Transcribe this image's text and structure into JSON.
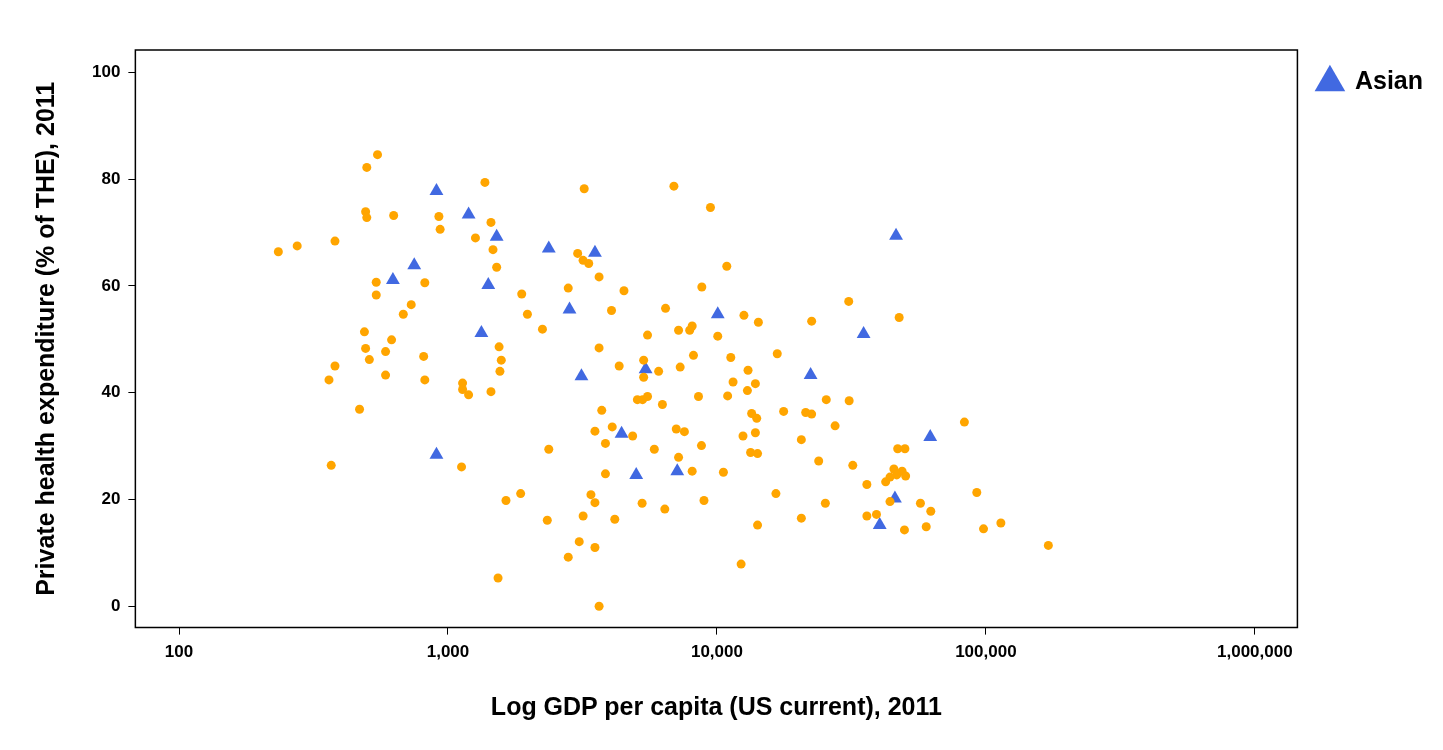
{
  "chart_data": {
    "type": "scatter",
    "xlabel": "Log GDP per capita (US current), 2011",
    "ylabel": "Private health expenditure (% of THE), 2011",
    "log": "x",
    "xlim": [
      68.8,
      1440000
    ],
    "ylim": [
      -4,
      104.2
    ],
    "xticks": [
      100,
      {
        "value": 1000,
        "label": "1,000"
      },
      {
        "value": 10000,
        "label": "10,000"
      },
      {
        "value": 100000,
        "label": "100,000"
      },
      {
        "value": 1000000,
        "label": "1,000,000"
      }
    ],
    "yticks": [
      0,
      20,
      40,
      60,
      80,
      100
    ],
    "grid": false,
    "legend": "top right",
    "series": [
      {
        "color": "#ffa500",
        "marker": "circle",
        "x": [
          547,
          499,
          1372,
          494,
          499,
          628,
          925,
          935,
          1445,
          1265,
          1470,
          1517,
          234,
          275,
          380,
          541,
          820,
          541,
          1880,
          730,
          682,
          1974,
          489,
          494,
          586,
          617,
          1549,
          812,
          510,
          1578,
          380,
          361,
          586,
          820,
          1560,
          1133,
          1133,
          1193,
          1445,
          469,
          368,
          1123,
          1863,
          1643,
          1535,
          3210,
          6918,
          9460,
          3035,
          3179,
          3336,
          3646,
          2800,
          4512,
          8787,
          10880,
          4055,
          2245,
          6440,
          30900,
          47600,
          12600,
          14260,
          22500,
          5520,
          7200,
          7920,
          8090,
          10070,
          3646,
          5340,
          8180,
          11260,
          16760,
          5340,
          4330,
          6070,
          7300,
          13050,
          11480,
          13900,
          12980,
          5060,
          5290,
          5520,
          6270,
          8540,
          10960,
          25500,
          31020,
          3730,
          13460,
          14060,
          17700,
          21380,
          22500,
          27500,
          3519,
          4080,
          4860,
          7060,
          7570,
          12500,
          13900,
          20600,
          3850,
          2370,
          5850,
          8760,
          7200,
          13340,
          14160,
          23900,
          32000,
          47000,
          50000,
          3850,
          8090,
          10570,
          36100,
          45500,
          48800,
          50300,
          44000,
          42400,
          46600,
          44000,
          3400,
          3519,
          5270,
          6400,
          8950,
          16570,
          25300,
          2340,
          3180,
          4170,
          14160,
          20600,
          36100,
          39200,
          49800,
          3076,
          3519,
          2800,
          12300,
          3646,
          83200,
          92500,
          57100,
          62400,
          60000,
          98000,
          113700,
          170700
        ],
        "values": [
          84.6,
          82.2,
          79.4,
          73.9,
          72.8,
          73.2,
          73.0,
          70.6,
          71.9,
          69.0,
          66.8,
          63.5,
          66.4,
          67.5,
          68.4,
          60.7,
          60.6,
          58.3,
          58.5,
          56.5,
          54.7,
          54.7,
          51.4,
          48.3,
          47.7,
          49.9,
          48.6,
          46.8,
          46.2,
          46.1,
          45.0,
          42.4,
          43.3,
          42.4,
          44.0,
          41.8,
          40.6,
          39.6,
          40.2,
          36.9,
          26.4,
          26.1,
          21.1,
          19.8,
          5.3,
          78.2,
          78.7,
          74.7,
          66.1,
          64.8,
          64.2,
          61.7,
          59.6,
          59.1,
          59.8,
          63.7,
          55.4,
          51.9,
          55.8,
          57.1,
          54.1,
          54.5,
          53.2,
          53.4,
          50.8,
          51.7,
          51.7,
          52.5,
          50.6,
          48.4,
          46.1,
          47.0,
          46.6,
          47.3,
          42.9,
          45.0,
          44.0,
          44.8,
          44.2,
          42.0,
          41.7,
          40.4,
          38.7,
          38.7,
          39.3,
          37.8,
          39.3,
          39.4,
          38.7,
          38.5,
          36.7,
          36.1,
          35.2,
          36.5,
          36.3,
          36.0,
          33.8,
          32.8,
          33.6,
          31.9,
          33.2,
          32.7,
          31.9,
          32.5,
          31.2,
          30.5,
          29.4,
          29.4,
          30.1,
          27.9,
          28.8,
          28.6,
          27.2,
          26.4,
          29.5,
          29.5,
          24.8,
          25.3,
          25.1,
          22.8,
          25.7,
          25.3,
          24.4,
          24.2,
          23.3,
          24.6,
          19.6,
          20.9,
          19.4,
          19.3,
          18.2,
          19.8,
          21.1,
          19.3,
          16.1,
          16.9,
          16.3,
          15.2,
          16.5,
          16.9,
          17.2,
          14.3,
          12.1,
          11.0,
          9.2,
          7.9,
          0.0,
          34.5,
          21.3,
          19.3,
          17.8,
          14.9,
          14.5,
          15.6,
          11.4
        ]
      },
      {
        "name": "Asian",
        "color": "#4169e1",
        "marker": "triangle",
        "x": [
          906,
          1193,
          1517,
          749,
          624,
          1412,
          1331,
          906,
          2370,
          3519,
          46340,
          2830,
          10070,
          35100,
          5430,
          3135,
          22300,
          4420,
          5010,
          7120,
          45900,
          40300,
          62100
        ],
        "values": [
          77.8,
          73.4,
          69.2,
          63.9,
          61.1,
          60.2,
          51.2,
          28.4,
          67.0,
          66.2,
          69.4,
          55.6,
          54.7,
          51.0,
          44.4,
          43.1,
          43.3,
          32.3,
          24.6,
          25.3,
          20.2,
          15.2,
          31.7
        ]
      }
    ]
  }
}
